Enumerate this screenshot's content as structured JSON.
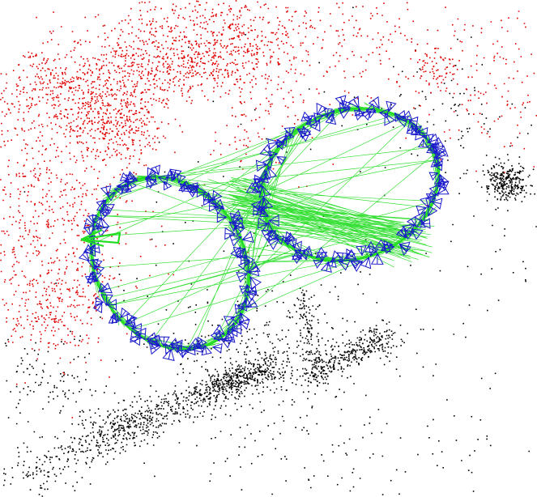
{
  "view": {
    "background": "#ffffff"
  },
  "colors": {
    "map_points_local": "#e00000",
    "map_points_global": "#000000",
    "covisibility_graph": "#22dd22",
    "keyframes": "#1a1acc",
    "current_camera": "#22dd22"
  },
  "legend": []
}
